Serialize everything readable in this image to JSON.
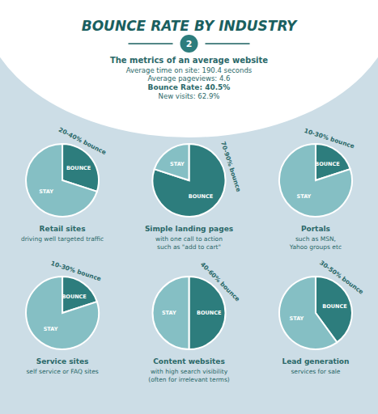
{
  "title": "BOUNCE RATE BY INDUSTRY",
  "subtitle": "The metrics of an average website",
  "annotations": [
    "2",
    "Average time on site: 190.4 seconds",
    "Average pageviews: 4.6",
    "Bounce Rate: 40.5%",
    "New visits: 62.9%"
  ],
  "chart_data": [
    {
      "type": "pie",
      "title": "Retail sites",
      "subtitle": "driving well targeted traffic",
      "annotations": [
        "20-40% bounce"
      ],
      "categories": [
        "BOUNCE",
        "STAY"
      ],
      "values": [
        30,
        70
      ],
      "colors": [
        "#2d7d7d",
        "#85bfc4"
      ]
    },
    {
      "type": "pie",
      "title": "Simple landing pages",
      "subtitle": "with one call to action\nsuch as \"add to cart\"",
      "annotations": [
        "70-90% bounce"
      ],
      "categories": [
        "BOUNCE",
        "STAY"
      ],
      "values": [
        80,
        20
      ],
      "colors": [
        "#2d7d7d",
        "#85bfc4"
      ]
    },
    {
      "type": "pie",
      "title": "Portals",
      "subtitle": "such as MSN,\nYahoo groups etc",
      "annotations": [
        "10-30% bounce"
      ],
      "categories": [
        "BOUNCE",
        "STAY"
      ],
      "values": [
        20,
        80
      ],
      "colors": [
        "#2d7d7d",
        "#85bfc4"
      ]
    },
    {
      "type": "pie",
      "title": "Service sites",
      "subtitle": "self service or FAQ sites",
      "annotations": [
        "10-30% bounce"
      ],
      "categories": [
        "BOUNCE",
        "STAY"
      ],
      "values": [
        20,
        80
      ],
      "colors": [
        "#2d7d7d",
        "#85bfc4"
      ]
    },
    {
      "type": "pie",
      "title": "Content websites",
      "subtitle": "with high search visibility\n(often for irrelevant terms)",
      "annotations": [
        "40-60% bounce"
      ],
      "categories": [
        "BOUNCE",
        "STAY"
      ],
      "values": [
        50,
        50
      ],
      "colors": [
        "#2d7d7d",
        "#85bfc4"
      ]
    },
    {
      "type": "pie",
      "title": "Lead generation",
      "subtitle": "services for sale",
      "annotations": [
        "30-50% bounce"
      ],
      "categories": [
        "BOUNCE",
        "STAY"
      ],
      "values": [
        40,
        60
      ],
      "colors": [
        "#2d7d7d",
        "#85bfc4"
      ]
    }
  ]
}
